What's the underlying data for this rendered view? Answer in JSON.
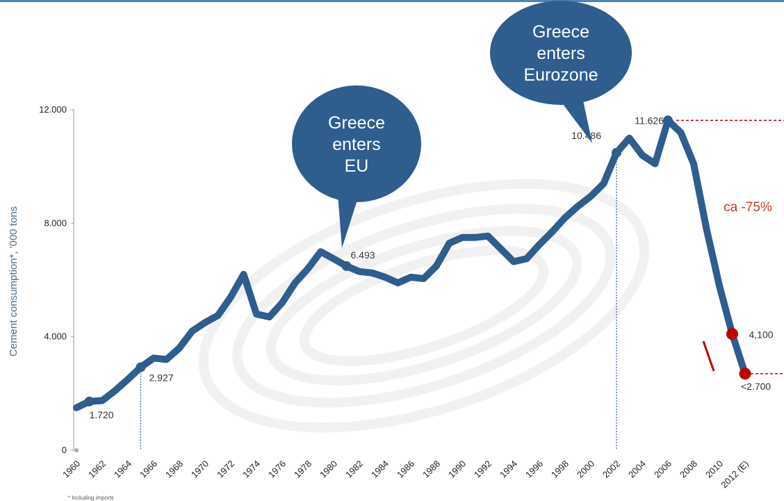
{
  "chart_data": {
    "type": "line",
    "ylabel": "Cement consumption*, '000 tons",
    "ylim": [
      0,
      12000
    ],
    "y_ticks": [
      "0",
      "4.000",
      "8.000",
      "12.000"
    ],
    "x_ticks": [
      "1960",
      "1962",
      "1964",
      "1966",
      "1968",
      "1970",
      "1972",
      "1974",
      "1976",
      "1978",
      "1980",
      "1982",
      "1984",
      "1986",
      "1988",
      "1990",
      "1992",
      "1994",
      "1996",
      "1998",
      "2000",
      "2002",
      "2004",
      "2006",
      "2008",
      "2010",
      "2012 (E)"
    ],
    "grid": false,
    "series": [
      {
        "color": "#2e5d8e",
        "x": [
          1960,
          1961,
          1962,
          1963,
          1964,
          1965,
          1966,
          1967,
          1968,
          1969,
          1970,
          1971,
          1972,
          1973,
          1974,
          1975,
          1976,
          1977,
          1978,
          1979,
          1980,
          1981,
          1982,
          1983,
          1984,
          1985,
          1986,
          1987,
          1988,
          1989,
          1990,
          1991,
          1992,
          1993,
          1994,
          1995,
          1996,
          1997,
          1998,
          1999,
          2000,
          2001,
          2002,
          2003,
          2004,
          2005,
          2006,
          2007,
          2008,
          2009,
          2010,
          2011,
          2012
        ],
        "y": [
          1500,
          1720,
          1750,
          2100,
          2500,
          2927,
          3250,
          3200,
          3600,
          4200,
          4500,
          4750,
          5400,
          6200,
          4800,
          4700,
          5200,
          5900,
          6400,
          7000,
          6750,
          6493,
          6300,
          6250,
          6100,
          5900,
          6100,
          6050,
          6500,
          7300,
          7500,
          7500,
          7550,
          7100,
          6650,
          6750,
          7250,
          7700,
          8200,
          8600,
          8950,
          9400,
          10486,
          11000,
          10400,
          10100,
          11626,
          11200,
          10100,
          7800,
          5800,
          4100,
          2700
        ]
      }
    ],
    "data_labels": [
      {
        "x": 1961,
        "y": 1720,
        "text": "1.720"
      },
      {
        "x": 1965,
        "y": 2927,
        "text": "2.927"
      },
      {
        "x": 1981,
        "y": 6493,
        "text": "6.493"
      },
      {
        "x": 2002,
        "y": 10486,
        "text": "10.486"
      },
      {
        "x": 2006,
        "y": 11626,
        "text": "11.626"
      },
      {
        "x": 2011,
        "y": 4100,
        "text": "4,100"
      },
      {
        "x": 2012,
        "y": 2700,
        "text": "<2.700"
      }
    ],
    "highlight_points": [
      {
        "x": 2011,
        "y": 4100,
        "color": "#c00000"
      },
      {
        "x": 2012,
        "y": 2700,
        "color": "#c00000"
      }
    ],
    "event_markers": [
      {
        "x": 1965,
        "y": 2927
      },
      {
        "x": 2002,
        "y": 10486
      }
    ],
    "annotations": [
      {
        "lines": [
          "Greece",
          "enters",
          "EU"
        ],
        "color": "#2e5d8e",
        "points_to_x": 1981
      },
      {
        "lines": [
          "Greece",
          "enters",
          "Eurozone"
        ],
        "color": "#2e5d8e",
        "points_to_x": 2002
      }
    ],
    "decline_note": {
      "text": "ca -75%",
      "from_value": 11626,
      "to_value": 2700,
      "color": "#c0392b"
    }
  },
  "footnote": "* Including imports"
}
